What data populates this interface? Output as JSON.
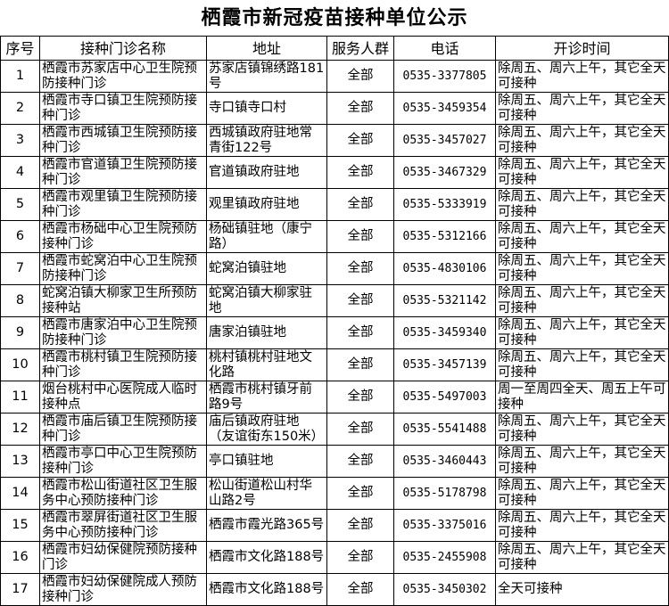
{
  "title": "栖霞市新冠疫苗接种单位公示",
  "columns": [
    "序号",
    "接种门诊名称",
    "地址",
    "服务人群",
    "电话",
    "开诊时间"
  ],
  "rows": [
    {
      "no": "1",
      "name": "栖霞市苏家店中心卫生院预防接种门诊",
      "address": "苏家店镇锦绣路181号",
      "group": "全部",
      "phone": "0535-3377805",
      "hours": "除周五、周六上午，其它全天可接种"
    },
    {
      "no": "2",
      "name": "栖霞市寺口镇卫生院预防接种门诊",
      "address": "寺口镇寺口村",
      "group": "全部",
      "phone": "0535-3459354",
      "hours": "除周五、周六上午，其它全天可接种"
    },
    {
      "no": "3",
      "name": "栖霞市西城镇卫生院预防接种门诊",
      "address": "西城镇政府驻地常青街122号",
      "group": "全部",
      "phone": "0535-3457027",
      "hours": "除周五、周六上午，其它全天可接种"
    },
    {
      "no": "4",
      "name": "栖霞市官道镇卫生院预防接种门诊",
      "address": "官道镇政府驻地",
      "group": "全部",
      "phone": "0535-3467329",
      "hours": "除周五、周六上午，其它全天可接种"
    },
    {
      "no": "5",
      "name": "栖霞市观里镇卫生院预防接种门诊",
      "address": "观里镇政府驻地",
      "group": "全部",
      "phone": "0535-5333919",
      "hours": "除周五、周六上午，其它全天可接种"
    },
    {
      "no": "6",
      "name": "栖霞市杨础中心卫生院预防接种门诊",
      "address": "杨础镇驻地（康宁路）",
      "group": "全部",
      "phone": "0535-5312166",
      "hours": "除周五、周六上午，其它全天可接种"
    },
    {
      "no": "7",
      "name": "栖霞市蛇窝泊中心卫生院预防接种门诊",
      "address": "蛇窝泊镇驻地",
      "group": "全部",
      "phone": "0535-4830106",
      "hours": "除周五、周六上午，其它全天可接种"
    },
    {
      "no": "8",
      "name": "蛇窝泊镇大柳家卫生所预防接种站",
      "address": "蛇窝泊镇大柳家驻地",
      "group": "全部",
      "phone": "0535-5321142",
      "hours": "除周五、周六上午，其它全天可接种"
    },
    {
      "no": "9",
      "name": "栖霞市唐家泊中心卫生院预防接种门诊",
      "address": "唐家泊镇驻地",
      "group": "全部",
      "phone": "0535-3459340",
      "hours": "除周五、周六上午，其它全天可接种"
    },
    {
      "no": "10",
      "name": "栖霞市桃村镇卫生院预防接种门诊",
      "address": "桃村镇桃村驻地文化路",
      "group": "全部",
      "phone": "0535-3457139",
      "hours": "除周五、周六上午，其它全天可接种"
    },
    {
      "no": "11",
      "name": "烟台桃村中心医院成人临时接种点",
      "address": "栖霞市桃村镇牙前路9号",
      "group": "全部",
      "phone": "0535-5497003",
      "hours": "周一至周四全天、周五上午可接种"
    },
    {
      "no": "12",
      "name": "栖霞市庙后镇卫生院预防接种门诊",
      "address": "庙后镇政府驻地（友谊街东150米）",
      "group": "全部",
      "phone": "0535-5541488",
      "hours": "除周五、周六上午，其它全天可接种"
    },
    {
      "no": "13",
      "name": "栖霞市亭口中心卫生院预防接种门诊",
      "address": "亭口镇驻地",
      "group": "全部",
      "phone": "0535-3460443",
      "hours": "除周五、周六上午，其它全天可接种"
    },
    {
      "no": "14",
      "name": "栖霞市松山街道社区卫生服务中心预防接种门诊",
      "address": "松山街道松山村华山路2号",
      "group": "全部",
      "phone": "0535-5178798",
      "hours": "除周五、周六上午，其它全天可接种"
    },
    {
      "no": "15",
      "name": "栖霞市翠屏街道社区卫生服务中心预防接种门诊",
      "address": "栖霞市霞光路365号",
      "group": "全部",
      "phone": "0535-3375016",
      "hours": "除周五、周六上午，其它全天可接种"
    },
    {
      "no": "16",
      "name": "栖霞市妇幼保健院预防接种门诊",
      "address": "栖霞市文化路188号",
      "group": "全部",
      "phone": "0535-2455908",
      "hours": "除周五、周六上午，其它全天可接种"
    },
    {
      "no": "17",
      "name": "栖霞市妇幼保健院成人预防接种门诊",
      "address": "栖霞市文化路188号",
      "group": "全部",
      "phone": "0535-3450302",
      "hours": "全天可接种"
    }
  ]
}
